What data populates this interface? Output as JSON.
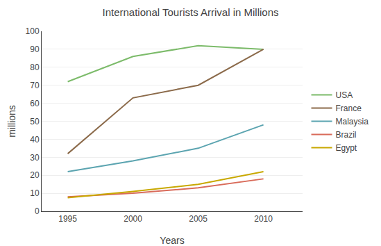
{
  "chart_data": {
    "type": "line",
    "title": "International Tourists Arrival in Millions",
    "x_label": "Years",
    "y_label": "millions",
    "x": [
      1995,
      2000,
      2005,
      2010
    ],
    "series": [
      {
        "name": "USA",
        "color": "#7CBB6A",
        "values": [
          72,
          86,
          92,
          90
        ]
      },
      {
        "name": "France",
        "color": "#8B6A4A",
        "values": [
          32,
          63,
          70,
          90
        ]
      },
      {
        "name": "Malaysia",
        "color": "#5BA4B0",
        "values": [
          22,
          28,
          35,
          48
        ]
      },
      {
        "name": "Brazil",
        "color": "#D96B5A",
        "values": [
          8,
          10,
          13,
          18
        ]
      },
      {
        "name": "Egypt",
        "color": "#C8A800",
        "values": [
          7.5,
          11,
          15,
          22
        ]
      }
    ],
    "xlim": [
      1993,
      2013
    ],
    "xticks": [
      1995,
      2000,
      2005,
      2010
    ],
    "ylim": [
      0,
      100
    ],
    "yticks": [
      0,
      10,
      20,
      30,
      40,
      50,
      60,
      70,
      80,
      90,
      100
    ],
    "grid": true,
    "legend": "right"
  }
}
